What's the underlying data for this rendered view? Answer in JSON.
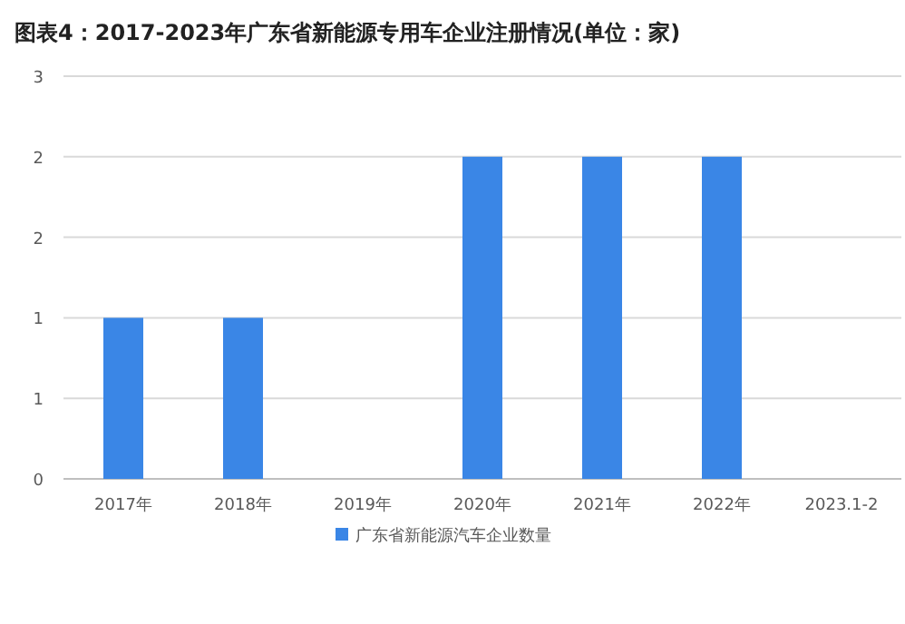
{
  "chart_data": {
    "type": "bar",
    "title": "图表4：2017-2023年广东省新能源专用车企业注册情况(单位：家)",
    "categories": [
      "2017年",
      "2018年",
      "2019年",
      "2020年",
      "2021年",
      "2022年",
      "2023.1-2"
    ],
    "series": [
      {
        "name": "广东省新能源汽车企业数量",
        "color": "#3a86e6",
        "values": [
          1,
          1,
          0,
          2,
          2,
          2,
          0
        ]
      }
    ],
    "ylim": [
      0,
      2.5
    ],
    "yticks": [
      0,
      {
        "value": 0.5,
        "label": "1"
      },
      1,
      {
        "value": 1.5,
        "label": "2"
      },
      2,
      {
        "value": 2.5,
        "label": "3"
      }
    ],
    "grid": "y",
    "legend": "bottom"
  }
}
